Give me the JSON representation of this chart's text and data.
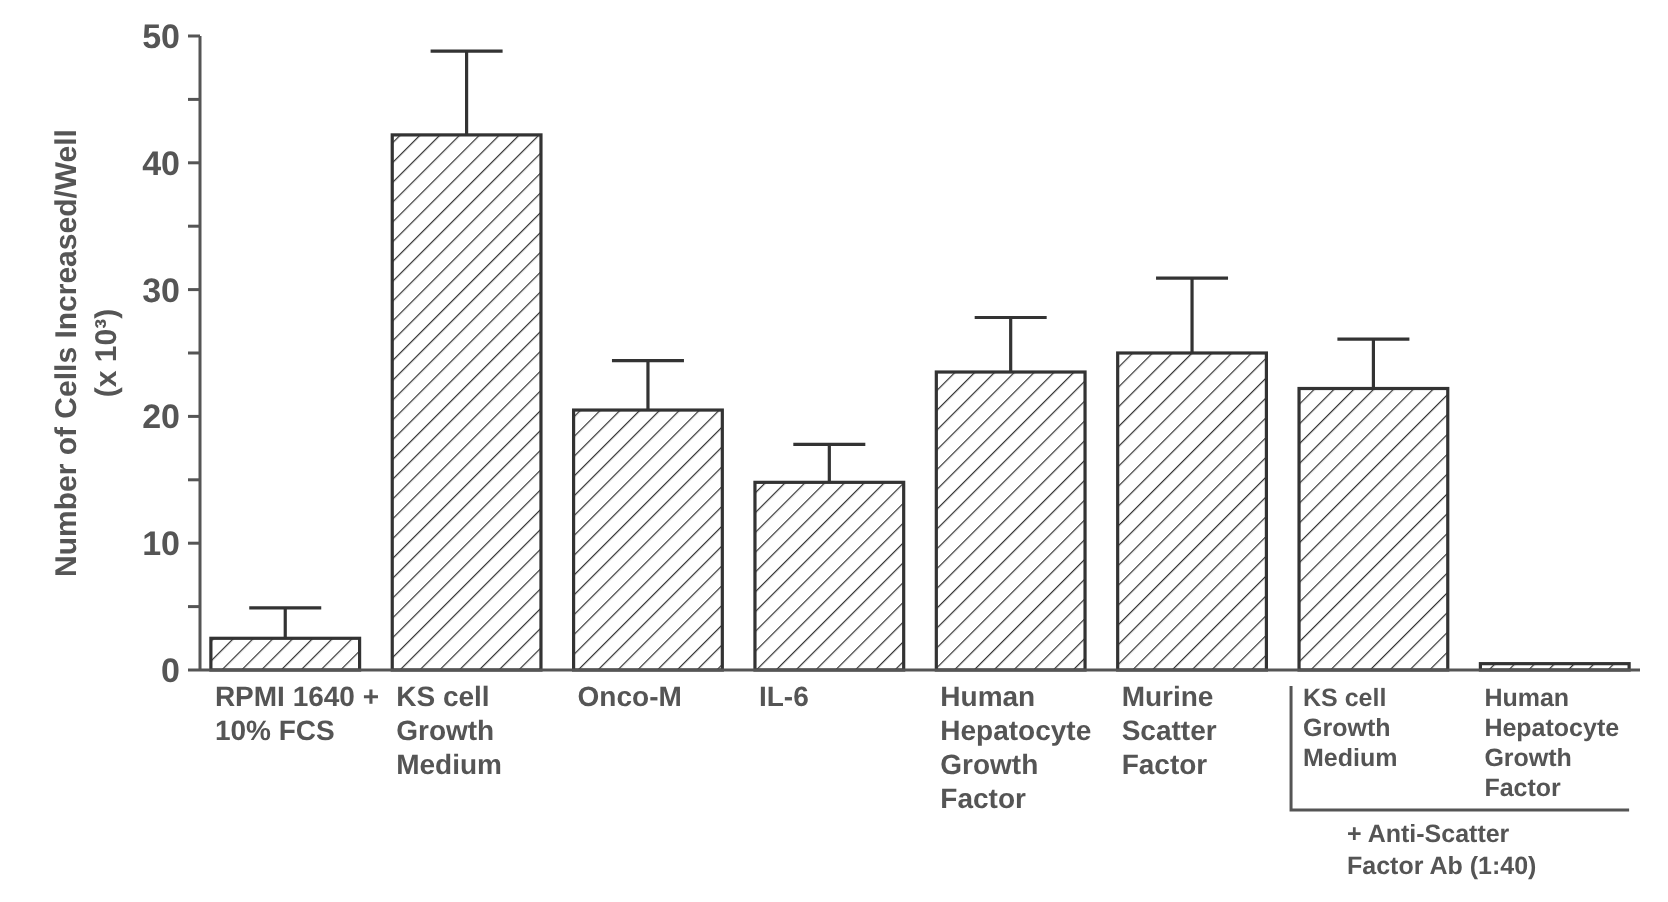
{
  "chart_data": {
    "type": "bar",
    "ylabel": "Number of Cells Increased/Well (x 10³)",
    "categories": [
      "RPMI 1640 + 10% FCS",
      "KS cell Growth Medium",
      "Onco-M",
      "IL-6",
      "Human Hepatocyte Growth Factor",
      "Murine Scatter Factor",
      "KS cell Growth Medium",
      "Human Hepatocyte Growth Factor"
    ],
    "values": [
      2.5,
      42.2,
      20.5,
      14.8,
      23.5,
      25,
      22.2,
      0.5
    ],
    "errors": [
      [
        2.5,
        4.9
      ],
      [
        42.2,
        48.8
      ],
      [
        20.5,
        24.4
      ],
      [
        14.8,
        17.8
      ],
      [
        23.5,
        27.8
      ],
      [
        25,
        30.9
      ],
      [
        22.2,
        26.1
      ],
      null
    ],
    "color": "#333333",
    "ylim": [
      0,
      50
    ],
    "yticks": [
      0,
      {
        "value": 5,
        "label": null
      },
      10,
      {
        "value": 15,
        "label": null
      },
      20,
      {
        "value": 25,
        "label": null
      },
      30,
      {
        "value": 35,
        "label": null
      },
      40,
      {
        "value": 45,
        "label": null
      },
      50
    ],
    "annotations": [
      "+ Anti-Scatter Factor Ab (1:40)"
    ],
    "grid": false
  }
}
